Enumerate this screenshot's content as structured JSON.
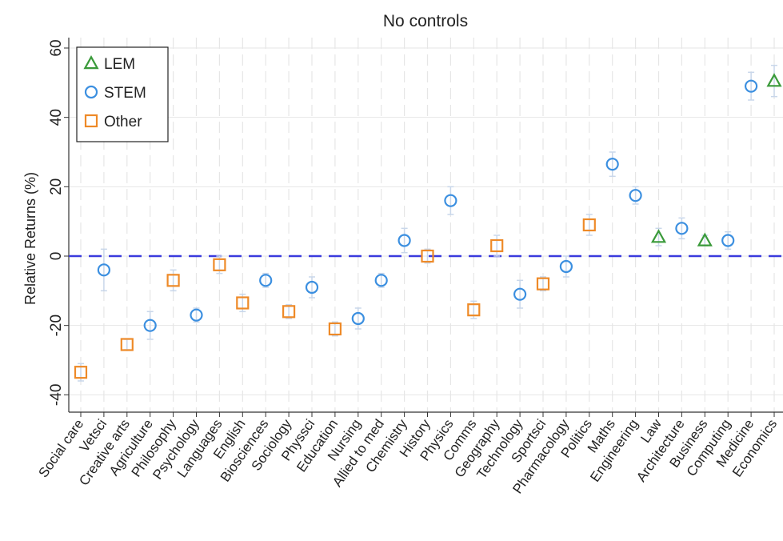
{
  "chart_data": {
    "type": "scatter",
    "title": "No controls",
    "xlabel": "",
    "ylabel": "Relative Returns (%)",
    "ylim": [
      -45,
      63
    ],
    "yticks": [
      -40,
      -20,
      0,
      20,
      40,
      60
    ],
    "ytick_labels": [
      "-40",
      "-20",
      "0",
      "20",
      "40",
      "60"
    ],
    "grid": true,
    "reference_line": 0,
    "legend": {
      "placement": "top-left",
      "entries": [
        {
          "name": "LEM",
          "marker": "triangle",
          "color": "#3a9a3a"
        },
        {
          "name": "STEM",
          "marker": "circle",
          "color": "#3b8fe0"
        },
        {
          "name": "Other",
          "marker": "square",
          "color": "#ee8a28"
        }
      ]
    },
    "colors": {
      "LEM": "#3a9a3a",
      "STEM": "#3b8fe0",
      "Other": "#ee8a28",
      "reference_line": "#3b3bdd",
      "error_bar": "#c9d7ea"
    },
    "categories": [
      "Social care",
      "Vetsci",
      "Creative arts",
      "Agriculture",
      "Philosophy",
      "Psychology",
      "Languages",
      "English",
      "Biosciences",
      "Sociology",
      "Physsci",
      "Education",
      "Nursing",
      "Allied to med",
      "Chemistry",
      "History",
      "Physics",
      "Comms",
      "Geography",
      "Technology",
      "Sportsci",
      "Pharmacology",
      "Politics",
      "Maths",
      "Engineering",
      "Law",
      "Architecture",
      "Business",
      "Computing",
      "Medicine",
      "Economics"
    ],
    "points": [
      {
        "subject": "Social care",
        "group": "Other",
        "value": -33.5,
        "ci": [
          -36,
          -31
        ]
      },
      {
        "subject": "Vetsci",
        "group": "STEM",
        "value": -4,
        "ci": [
          -10,
          2
        ]
      },
      {
        "subject": "Creative arts",
        "group": "Other",
        "value": -25.5,
        "ci": [
          -27,
          -24
        ]
      },
      {
        "subject": "Agriculture",
        "group": "STEM",
        "value": -20,
        "ci": [
          -24,
          -16
        ]
      },
      {
        "subject": "Philosophy",
        "group": "Other",
        "value": -7,
        "ci": [
          -10,
          -4
        ]
      },
      {
        "subject": "Psychology",
        "group": "STEM",
        "value": -17,
        "ci": [
          -19,
          -15
        ]
      },
      {
        "subject": "Languages",
        "group": "Other",
        "value": -2.5,
        "ci": [
          -5,
          0
        ]
      },
      {
        "subject": "English",
        "group": "Other",
        "value": -13.5,
        "ci": [
          -16,
          -11
        ]
      },
      {
        "subject": "Biosciences",
        "group": "STEM",
        "value": -7,
        "ci": [
          -9,
          -5
        ]
      },
      {
        "subject": "Sociology",
        "group": "Other",
        "value": -16,
        "ci": [
          -18,
          -14
        ]
      },
      {
        "subject": "Physsci",
        "group": "STEM",
        "value": -9,
        "ci": [
          -12,
          -6
        ]
      },
      {
        "subject": "Education",
        "group": "Other",
        "value": -21,
        "ci": [
          -23,
          -19
        ]
      },
      {
        "subject": "Nursing",
        "group": "STEM",
        "value": -18,
        "ci": [
          -21,
          -15
        ]
      },
      {
        "subject": "Allied to med",
        "group": "STEM",
        "value": -7,
        "ci": [
          -9,
          -5
        ]
      },
      {
        "subject": "Chemistry",
        "group": "STEM",
        "value": 4.5,
        "ci": [
          1,
          8
        ]
      },
      {
        "subject": "History",
        "group": "Other",
        "value": 0,
        "ci": [
          -2,
          2
        ]
      },
      {
        "subject": "Physics",
        "group": "STEM",
        "value": 16,
        "ci": [
          12,
          20
        ]
      },
      {
        "subject": "Comms",
        "group": "Other",
        "value": -15.5,
        "ci": [
          -18,
          -13
        ]
      },
      {
        "subject": "Geography",
        "group": "Other",
        "value": 3,
        "ci": [
          0,
          6
        ]
      },
      {
        "subject": "Technology",
        "group": "STEM",
        "value": -11,
        "ci": [
          -15,
          -7
        ]
      },
      {
        "subject": "Sportsci",
        "group": "Other",
        "value": -8,
        "ci": [
          -10,
          -6
        ]
      },
      {
        "subject": "Pharmacology",
        "group": "STEM",
        "value": -3,
        "ci": [
          -6,
          0
        ]
      },
      {
        "subject": "Politics",
        "group": "Other",
        "value": 9,
        "ci": [
          6,
          12
        ]
      },
      {
        "subject": "Maths",
        "group": "STEM",
        "value": 26.5,
        "ci": [
          23,
          30
        ]
      },
      {
        "subject": "Engineering",
        "group": "STEM",
        "value": 17.5,
        "ci": [
          15,
          20
        ]
      },
      {
        "subject": "Law",
        "group": "LEM",
        "value": 5.5,
        "ci": [
          3,
          8
        ]
      },
      {
        "subject": "Architecture",
        "group": "STEM",
        "value": 8,
        "ci": [
          5,
          11
        ]
      },
      {
        "subject": "Business",
        "group": "LEM",
        "value": 4.5,
        "ci": [
          3,
          6
        ]
      },
      {
        "subject": "Computing",
        "group": "STEM",
        "value": 4.5,
        "ci": [
          2,
          7
        ]
      },
      {
        "subject": "Medicine",
        "group": "STEM",
        "value": 49,
        "ci": [
          45,
          53
        ]
      },
      {
        "subject": "Economics",
        "group": "LEM",
        "value": 50.5,
        "ci": [
          46,
          55
        ]
      }
    ]
  }
}
